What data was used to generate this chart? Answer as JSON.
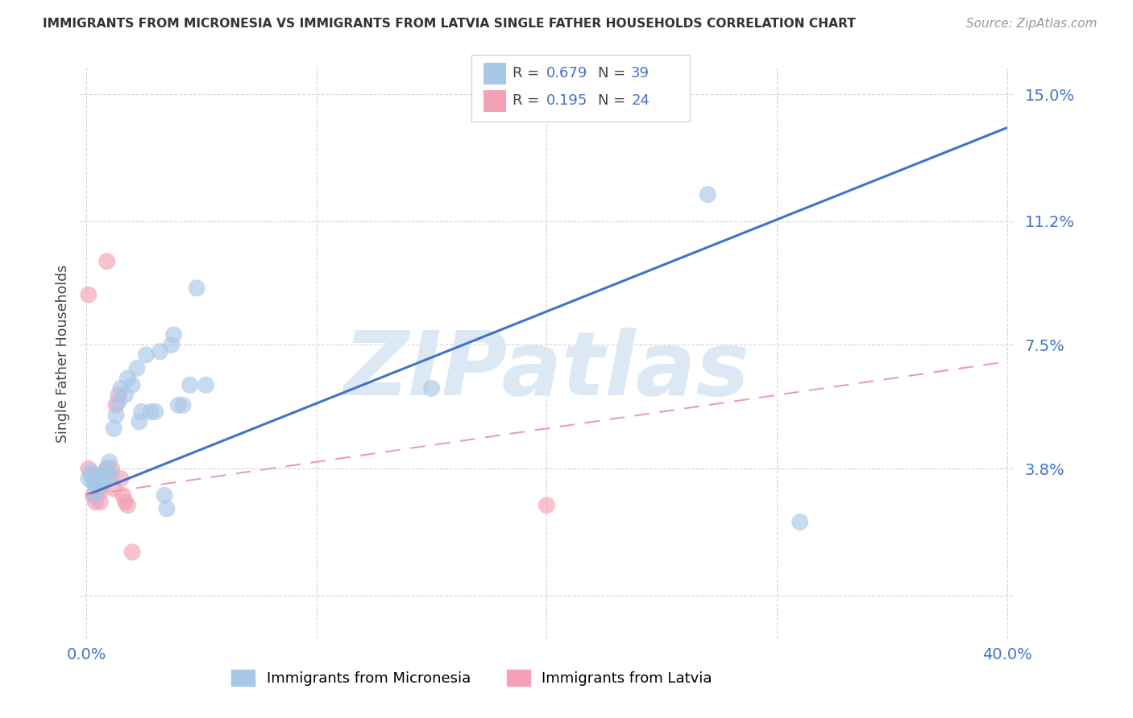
{
  "title": "IMMIGRANTS FROM MICRONESIA VS IMMIGRANTS FROM LATVIA SINGLE FATHER HOUSEHOLDS CORRELATION CHART",
  "source": "Source: ZipAtlas.com",
  "ylabel": "Single Father Households",
  "y_ticks": [
    0.0,
    0.038,
    0.075,
    0.112,
    0.15
  ],
  "y_tick_labels": [
    "",
    "3.8%",
    "7.5%",
    "11.2%",
    "15.0%"
  ],
  "xlim": [
    -0.003,
    0.403
  ],
  "ylim": [
    -0.013,
    0.158
  ],
  "micronesia_R": 0.679,
  "micronesia_N": 39,
  "latvia_R": 0.195,
  "latvia_N": 24,
  "micronesia_color": "#a8c8e8",
  "latvia_color": "#f4a0b5",
  "micronesia_line_color": "#4472c4",
  "latvia_line_color": "#e8a0b0",
  "text_blue": "#4472c4",
  "watermark": "ZIPatlas",
  "watermark_color": "#dde8f5",
  "mic_x": [
    0.001,
    0.002,
    0.003,
    0.004,
    0.004,
    0.005,
    0.005,
    0.006,
    0.007,
    0.008,
    0.009,
    0.01,
    0.011,
    0.012,
    0.013,
    0.014,
    0.015,
    0.017,
    0.018,
    0.02,
    0.022,
    0.023,
    0.024,
    0.026,
    0.028,
    0.03,
    0.032,
    0.034,
    0.035,
    0.037,
    0.038,
    0.04,
    0.042,
    0.045,
    0.048,
    0.052,
    0.15,
    0.27,
    0.31
  ],
  "mic_y": [
    0.035,
    0.037,
    0.034,
    0.033,
    0.03,
    0.036,
    0.032,
    0.035,
    0.034,
    0.036,
    0.038,
    0.04,
    0.036,
    0.05,
    0.054,
    0.058,
    0.062,
    0.06,
    0.065,
    0.063,
    0.068,
    0.052,
    0.055,
    0.072,
    0.055,
    0.055,
    0.073,
    0.03,
    0.026,
    0.075,
    0.078,
    0.057,
    0.057,
    0.063,
    0.092,
    0.063,
    0.062,
    0.12,
    0.022
  ],
  "lat_x": [
    0.001,
    0.002,
    0.003,
    0.004,
    0.005,
    0.005,
    0.006,
    0.006,
    0.007,
    0.008,
    0.009,
    0.009,
    0.01,
    0.011,
    0.012,
    0.013,
    0.014,
    0.015,
    0.016,
    0.017,
    0.018,
    0.02,
    0.2,
    0.001
  ],
  "lat_y": [
    0.038,
    0.036,
    0.03,
    0.028,
    0.032,
    0.036,
    0.031,
    0.028,
    0.033,
    0.035,
    0.1,
    0.038,
    0.036,
    0.038,
    0.032,
    0.057,
    0.06,
    0.035,
    0.03,
    0.028,
    0.027,
    0.013,
    0.027,
    0.09
  ],
  "mic_trend": [
    0.0,
    0.03,
    0.4,
    0.14
  ],
  "lat_trend": [
    0.0,
    0.03,
    0.4,
    0.07
  ],
  "legend_text_color": "#4472c4",
  "legend_label_color": "#333333"
}
